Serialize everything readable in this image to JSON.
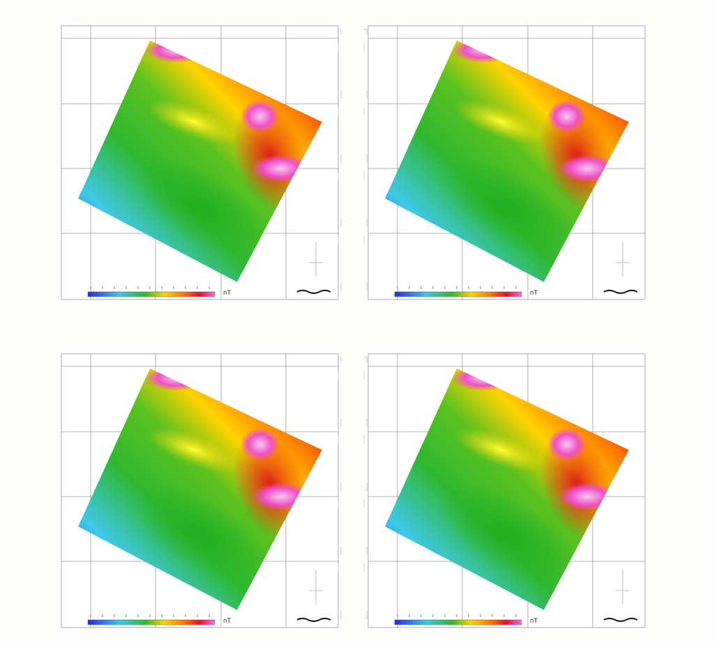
{
  "panels": [
    {
      "legend_unit": "nT"
    },
    {
      "legend_unit": "nT"
    },
    {
      "legend_unit": "nT"
    },
    {
      "legend_unit": "nT"
    }
  ]
}
